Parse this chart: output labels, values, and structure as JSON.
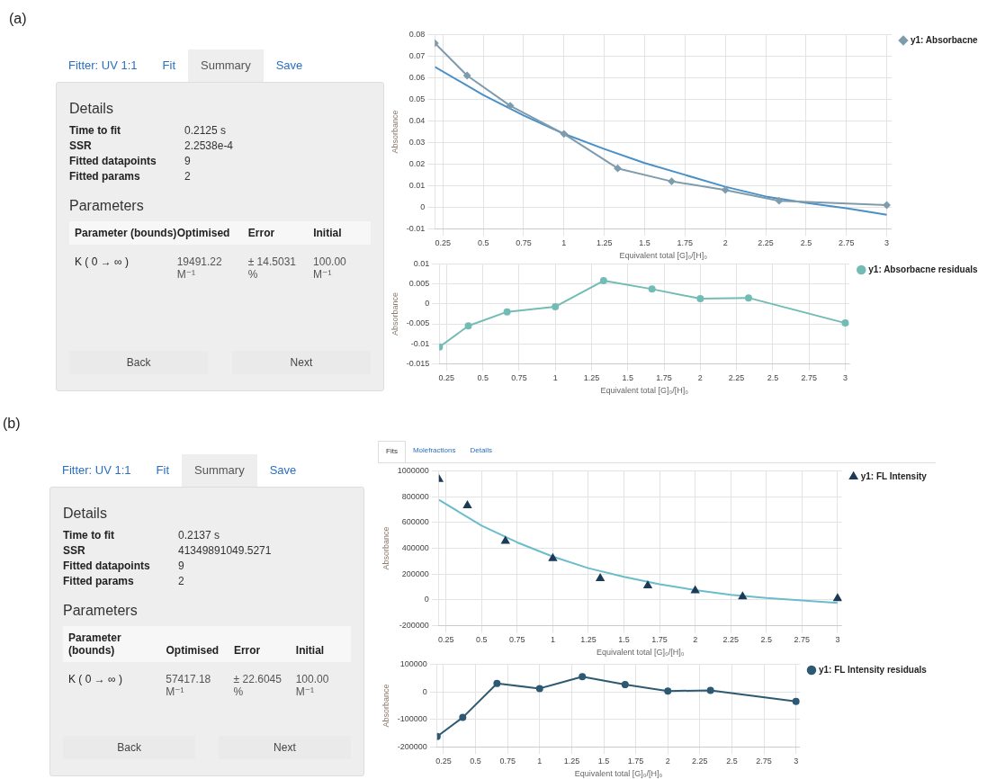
{
  "chart_data": [
    {
      "type": "other",
      "title": "(a)",
      "annotations": [
        "Fitter: UV 1:1",
        "Fit",
        "Summary",
        "Save",
        "Details",
        "Time to fit",
        "0.2125 s",
        "SSR",
        "2.2538e-4",
        "Fitted datapoints",
        "9",
        "Fitted params",
        "2",
        "Parameters",
        "Parameter (bounds)",
        "Optimised",
        "Error",
        "Initial",
        "K ( 0 → ∞ )",
        "19491.22 M⁻¹",
        "± 14.5031 %",
        "100.00 M⁻¹",
        "Back",
        "Next"
      ]
    },
    {
      "type": "line",
      "xlabel": "Equivalent total [G]₀/[H]₀",
      "ylabel": "Absorbance",
      "x": [
        0.2,
        0.4,
        0.667,
        1,
        1.333,
        1.667,
        2,
        2.333,
        3
      ],
      "xlim": [
        0.2,
        3.03
      ],
      "xticks": [
        0.25,
        0.5,
        0.75,
        1,
        1.25,
        1.5,
        1.75,
        2,
        2.25,
        2.5,
        2.75,
        3
      ],
      "ylim": [
        -0.01,
        0.08
      ],
      "yticks": [
        -0.01,
        0,
        0.01,
        0.02,
        0.03,
        0.04,
        0.05,
        0.06,
        0.07,
        0.08
      ],
      "grid": true,
      "legend": "top right",
      "series": [
        {
          "name": "y1: Absorbacne",
          "type": "line",
          "marker": "diamond",
          "color": "#7f9cad",
          "values": [
            0.076,
            0.061,
            0.047,
            0.034,
            0.018,
            0.012,
            0.008,
            0.003,
            0.001
          ]
        },
        {
          "type": "line",
          "marker": "none",
          "color": "#4a90c8",
          "x": [
            0.2,
            0.5,
            0.75,
            1,
            1.25,
            1.5,
            1.75,
            2,
            2.25,
            2.5,
            2.75,
            3
          ],
          "values": [
            0.065,
            0.052,
            0.0425,
            0.034,
            0.027,
            0.0205,
            0.015,
            0.0095,
            0.005,
            0.002,
            -0.0005,
            -0.0035
          ]
        }
      ]
    },
    {
      "type": "line",
      "xlabel": "Equivalent total [G]₀/[H]₀",
      "ylabel": "Absorbance",
      "x": [
        0.2,
        0.4,
        0.667,
        1,
        1.333,
        1.667,
        2,
        2.333,
        3
      ],
      "xlim": [
        0.2,
        3.03
      ],
      "xticks": [
        0.25,
        0.5,
        0.75,
        1,
        1.25,
        1.5,
        1.75,
        2,
        2.25,
        2.5,
        2.75,
        3
      ],
      "ylim": [
        -0.015,
        0.01
      ],
      "yticks": [
        -0.015,
        -0.01,
        -0.005,
        0,
        0.005,
        0.01
      ],
      "grid": true,
      "legend": "top right",
      "series": [
        {
          "name": "y1: Absorbacne residuals",
          "type": "line",
          "marker": "circle",
          "color": "#72bcb5",
          "values": [
            -0.0108,
            -0.0055,
            -0.002,
            -0.0007,
            0.0058,
            0.0037,
            0.0013,
            0.0015,
            -0.0048
          ]
        }
      ]
    },
    {
      "type": "other",
      "title": "(b)",
      "annotations": [
        "Fitter: UV 1:1",
        "Fit",
        "Summary",
        "Save",
        "Details",
        "Time to fit",
        "0.2137 s",
        "SSR",
        "41349891049.5271",
        "Fitted datapoints",
        "9",
        "Fitted params",
        "2",
        "Parameters",
        "Parameter (bounds)",
        "Optimised",
        "Error",
        "Initial",
        "K ( 0 → ∞ )",
        "57417.18 M⁻¹",
        "± 22.6045 %",
        "100.00 M⁻¹",
        "Back",
        "Next"
      ]
    },
    {
      "type": "scatter",
      "annotations": [
        "Fits",
        "Molefractions",
        "Details"
      ],
      "xlabel": "Equivalent total [G]₀/[H]₀",
      "ylabel": "Absorbance",
      "x": [
        0.2,
        0.4,
        0.667,
        1,
        1.333,
        1.667,
        2,
        2.333,
        3
      ],
      "xlim": [
        0.2,
        3.03
      ],
      "xticks": [
        0.25,
        0.5,
        0.75,
        1,
        1.25,
        1.5,
        1.75,
        2,
        2.25,
        2.5,
        2.75,
        3
      ],
      "ylim": [
        -200000,
        1000000
      ],
      "yticks": [
        -200000,
        0,
        200000,
        400000,
        600000,
        800000,
        1000000
      ],
      "grid": true,
      "legend": "top right",
      "series": [
        {
          "name": "y1: FL Intensity",
          "type": "scatter",
          "marker": "triangle",
          "color": "#1d3a57",
          "values": [
            935000,
            730000,
            455000,
            320000,
            165000,
            110000,
            72000,
            25000,
            10000
          ]
        },
        {
          "type": "line",
          "marker": "none",
          "color": "#6bbccc",
          "x": [
            0.2,
            0.5,
            0.75,
            1,
            1.25,
            1.5,
            1.75,
            2,
            2.25,
            2.5,
            2.75,
            3
          ],
          "values": [
            775000,
            575000,
            445000,
            335000,
            245000,
            178000,
            120000,
            75000,
            38000,
            13000,
            -5000,
            -25000
          ]
        }
      ]
    },
    {
      "type": "line",
      "xlabel": "Equivalent total [G]₀/[H]₀",
      "ylabel": "Absorbance",
      "x": [
        0.2,
        0.4,
        0.667,
        1,
        1.333,
        1.667,
        2,
        2.333,
        3
      ],
      "xlim": [
        0.2,
        3.03
      ],
      "xticks": [
        0.25,
        0.5,
        0.75,
        1,
        1.25,
        1.5,
        1.75,
        2,
        2.25,
        2.5,
        2.75,
        3
      ],
      "ylim": [
        -200000,
        100000
      ],
      "yticks": [
        -200000,
        -100000,
        0,
        100000
      ],
      "grid": true,
      "legend": "top right",
      "series": [
        {
          "name": "y1: FL Intensity residuals",
          "type": "line",
          "marker": "circle",
          "color": "#2d5a72",
          "values": [
            -162000,
            -93000,
            30000,
            12000,
            55000,
            26000,
            3000,
            5000,
            -35000
          ]
        }
      ]
    }
  ]
}
